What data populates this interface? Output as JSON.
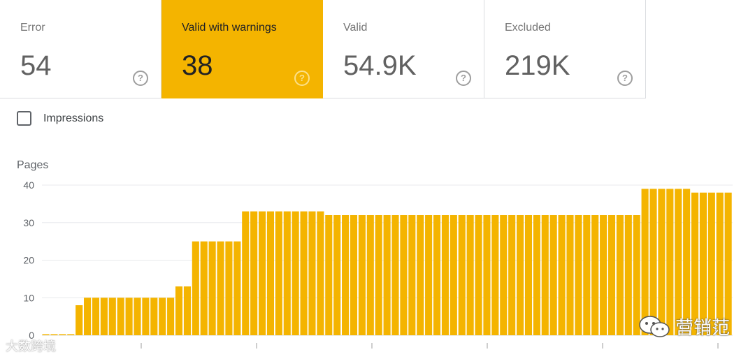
{
  "cards": [
    {
      "label": "Error",
      "value": "54",
      "active": false
    },
    {
      "label": "Valid with warnings",
      "value": "38",
      "active": true
    },
    {
      "label": "Valid",
      "value": "54.9K",
      "active": false
    },
    {
      "label": "Excluded",
      "value": "219K",
      "active": false
    }
  ],
  "help_glyph": "?",
  "impressions": {
    "label": "Impressions",
    "checked": false
  },
  "chart_data": {
    "type": "bar",
    "ylabel": "Pages",
    "ylim": [
      0,
      40
    ],
    "yticks": [
      0,
      10,
      20,
      30,
      40
    ],
    "grid": true,
    "color": "#f4b400",
    "values": [
      0,
      0,
      0,
      0,
      8,
      10,
      10,
      10,
      10,
      10,
      10,
      10,
      10,
      10,
      10,
      10,
      13,
      13,
      25,
      25,
      25,
      25,
      25,
      25,
      33,
      33,
      33,
      33,
      33,
      33,
      33,
      33,
      33,
      33,
      32,
      32,
      32,
      32,
      32,
      32,
      32,
      32,
      32,
      32,
      32,
      32,
      32,
      32,
      32,
      32,
      32,
      32,
      32,
      32,
      32,
      32,
      32,
      32,
      32,
      32,
      32,
      32,
      32,
      32,
      32,
      32,
      32,
      32,
      32,
      32,
      32,
      32,
      39,
      39,
      39,
      39,
      39,
      39,
      38,
      38,
      38,
      38,
      38
    ]
  },
  "watermarks": {
    "left": "大数跨境",
    "right": "营销范"
  }
}
